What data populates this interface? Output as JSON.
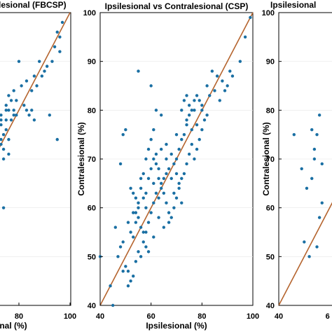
{
  "chart_data": [
    {
      "type": "scatter",
      "title": "lesional (FBCSP)",
      "xlabel": "onal  (%)",
      "ylabel": "",
      "xlim": [
        40,
        100
      ],
      "ylim": [
        40,
        100
      ],
      "xticks": [
        "80",
        "100"
      ],
      "yticks": [],
      "reference_line": "y = x",
      "points": [
        [
          97,
          98
        ],
        [
          96,
          95
        ],
        [
          94,
          93
        ],
        [
          88,
          90
        ],
        [
          86,
          87
        ],
        [
          83,
          86
        ],
        [
          81,
          85
        ],
        [
          79,
          82
        ],
        [
          77,
          82
        ],
        [
          75,
          80
        ],
        [
          73,
          77
        ],
        [
          96,
          92
        ],
        [
          80,
          90
        ],
        [
          90,
          88
        ],
        [
          85,
          84
        ],
        [
          79,
          79
        ],
        [
          77,
          78
        ],
        [
          75,
          76
        ],
        [
          74,
          75
        ],
        [
          73,
          74
        ],
        [
          72,
          73
        ],
        [
          71,
          72
        ],
        [
          74,
          70
        ],
        [
          75,
          78
        ],
        [
          76,
          80
        ],
        [
          78,
          84
        ],
        [
          71,
          75
        ],
        [
          72,
          77
        ],
        [
          73,
          79
        ],
        [
          75,
          81
        ],
        [
          76,
          83
        ],
        [
          78,
          79
        ],
        [
          73,
          73
        ],
        [
          72,
          71
        ],
        [
          71,
          70
        ],
        [
          74,
          72
        ],
        [
          76,
          74
        ],
        [
          95,
          74
        ],
        [
          92,
          79
        ],
        [
          85,
          80
        ],
        [
          73,
          78
        ],
        [
          71,
          77
        ],
        [
          76,
          71
        ],
        [
          74,
          60
        ],
        [
          72,
          68
        ],
        [
          71,
          66
        ],
        [
          78,
          80
        ],
        [
          87,
          85
        ],
        [
          89,
          87
        ],
        [
          91,
          89
        ],
        [
          93,
          90
        ],
        [
          82,
          81
        ],
        [
          83,
          80
        ],
        [
          84,
          79
        ],
        [
          86,
          78
        ],
        [
          95,
          96
        ]
      ]
    },
    {
      "type": "scatter",
      "title": "Ipsilesional vs Contralesional (CSP)",
      "xlabel": "Ipsilesional  (%)",
      "ylabel": "Contralesional  (%)",
      "xlim": [
        40,
        100
      ],
      "ylim": [
        40,
        100
      ],
      "xticks": [
        "40",
        "60",
        "80",
        "100"
      ],
      "yticks": [
        "40",
        "50",
        "60",
        "70",
        "80",
        "90",
        "100"
      ],
      "reference_line": "y = x",
      "points": [
        [
          40,
          50
        ],
        [
          45,
          40
        ],
        [
          44,
          44
        ],
        [
          46,
          56
        ],
        [
          47,
          50
        ],
        [
          48,
          52
        ],
        [
          49,
          47
        ],
        [
          50,
          48
        ],
        [
          51,
          47
        ],
        [
          52,
          45
        ],
        [
          53,
          46
        ],
        [
          52,
          55
        ],
        [
          53,
          54
        ],
        [
          54,
          57
        ],
        [
          55,
          58
        ],
        [
          56,
          56
        ],
        [
          57,
          55
        ],
        [
          58,
          52
        ],
        [
          55,
          60
        ],
        [
          54,
          62
        ],
        [
          53,
          63
        ],
        [
          56,
          64
        ],
        [
          57,
          62
        ],
        [
          58,
          60
        ],
        [
          59,
          57
        ],
        [
          60,
          59
        ],
        [
          61,
          61
        ],
        [
          62,
          63
        ],
        [
          63,
          62
        ],
        [
          64,
          64
        ],
        [
          65,
          66
        ],
        [
          66,
          67
        ],
        [
          67,
          68
        ],
        [
          68,
          66
        ],
        [
          69,
          69
        ],
        [
          70,
          70
        ],
        [
          71,
          72
        ],
        [
          72,
          74
        ],
        [
          73,
          75
        ],
        [
          74,
          77
        ],
        [
          75,
          79
        ],
        [
          76,
          80
        ],
        [
          77,
          82
        ],
        [
          78,
          83
        ],
        [
          80,
          81
        ],
        [
          82,
          85
        ],
        [
          84,
          88
        ],
        [
          86,
          87
        ],
        [
          88,
          86
        ],
        [
          90,
          85
        ],
        [
          92,
          87
        ],
        [
          95,
          90
        ],
        [
          97,
          95
        ],
        [
          99,
          99
        ],
        [
          55,
          88
        ],
        [
          60,
          85
        ],
        [
          61,
          76
        ],
        [
          50,
          76
        ],
        [
          48,
          69
        ],
        [
          49,
          75
        ],
        [
          58,
          70
        ],
        [
          59,
          72
        ],
        [
          60,
          74
        ],
        [
          62,
          71
        ],
        [
          63,
          68
        ],
        [
          64,
          65
        ],
        [
          65,
          63
        ],
        [
          66,
          61
        ],
        [
          67,
          59
        ],
        [
          68,
          58
        ],
        [
          69,
          60
        ],
        [
          70,
          62
        ],
        [
          71,
          64
        ],
        [
          72,
          66
        ],
        [
          73,
          67
        ],
        [
          74,
          69
        ],
        [
          75,
          71
        ],
        [
          76,
          73
        ],
        [
          77,
          70
        ],
        [
          78,
          72
        ],
        [
          79,
          74
        ],
        [
          80,
          76
        ],
        [
          81,
          78
        ],
        [
          82,
          79
        ],
        [
          73,
          82
        ],
        [
          75,
          81
        ],
        [
          77,
          80
        ],
        [
          79,
          82
        ],
        [
          62,
          80
        ],
        [
          64,
          79
        ],
        [
          56,
          66
        ],
        [
          57,
          67
        ],
        [
          59,
          66
        ],
        [
          61,
          65
        ],
        [
          63,
          58
        ],
        [
          65,
          56
        ],
        [
          67,
          57
        ],
        [
          69,
          63
        ],
        [
          71,
          65
        ],
        [
          72,
          61
        ],
        [
          52,
          64
        ],
        [
          54,
          59
        ],
        [
          55,
          61
        ],
        [
          58,
          63
        ],
        [
          60,
          68
        ],
        [
          62,
          69
        ],
        [
          66,
          70
        ],
        [
          68,
          71
        ],
        [
          70,
          75
        ],
        [
          74,
          78
        ],
        [
          76,
          76
        ],
        [
          78,
          77
        ],
        [
          80,
          80
        ],
        [
          85,
          84
        ],
        [
          87,
          82
        ],
        [
          89,
          84
        ],
        [
          91,
          88
        ],
        [
          83,
          83
        ],
        [
          72,
          80
        ],
        [
          74,
          83
        ],
        [
          66,
          73
        ],
        [
          64,
          72
        ],
        [
          63,
          66
        ],
        [
          61,
          70
        ],
        [
          70,
          67
        ],
        [
          57,
          53
        ],
        [
          59,
          51
        ],
        [
          61,
          54
        ],
        [
          51,
          57
        ],
        [
          53,
          59
        ],
        [
          55,
          51
        ],
        [
          49,
          53
        ],
        [
          51,
          44
        ],
        [
          54,
          49
        ],
        [
          56,
          50
        ],
        [
          58,
          55
        ]
      ]
    },
    {
      "type": "scatter",
      "title": "Ipsilesional",
      "xlabel": "",
      "ylabel": "Contralesional  (%)",
      "xlim": [
        40,
        100
      ],
      "ylim": [
        40,
        100
      ],
      "xticks": [
        "40",
        "6"
      ],
      "yticks": [
        "40",
        "50",
        "60",
        "70",
        "80",
        "90",
        "100"
      ],
      "reference_line": "y = x",
      "points": [
        [
          46,
          75
        ],
        [
          49,
          68
        ],
        [
          50,
          53
        ],
        [
          52,
          50
        ],
        [
          51,
          64
        ],
        [
          53,
          66
        ],
        [
          54,
          72
        ],
        [
          55,
          52
        ],
        [
          56,
          58
        ],
        [
          57,
          61
        ],
        [
          56,
          79
        ],
        [
          55,
          75
        ],
        [
          54,
          70
        ],
        [
          53,
          76
        ],
        [
          57,
          69
        ]
      ]
    }
  ]
}
